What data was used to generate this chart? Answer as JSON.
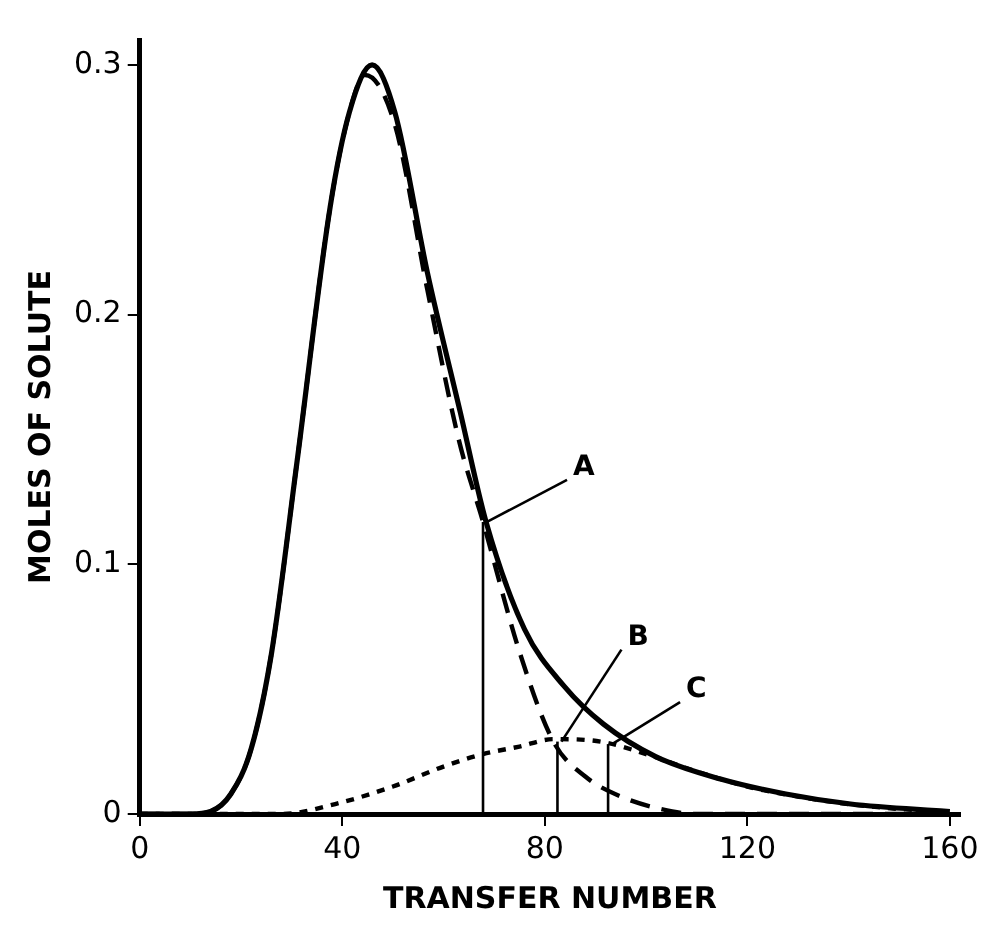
{
  "chart_data": {
    "type": "line",
    "xlabel": "TRANSFER NUMBER",
    "ylabel": "MOLES OF SOLUTE",
    "xlim": [
      0,
      162
    ],
    "ylim": [
      0,
      0.31
    ],
    "xticks": [
      0,
      40,
      80,
      120,
      160
    ],
    "yticks": [
      0,
      0.1,
      0.2,
      0.3
    ],
    "grid": false,
    "legend": false,
    "series": [
      {
        "color": "#000000",
        "line_style": "solid",
        "x": [
          0,
          10,
          14,
          18,
          22,
          26,
          31,
          37.6,
          41.4,
          45.9,
          50.4,
          56.8,
          63.3,
          68.4,
          76,
          83.9,
          91.6,
          101.9,
          114.7,
          127.6,
          140.4,
          160
        ],
        "values": [
          0,
          0,
          0.001,
          0.008,
          0.026,
          0.064,
          0.14,
          0.243,
          0.281,
          0.3,
          0.281,
          0.217,
          0.161,
          0.117,
          0.074,
          0.051,
          0.036,
          0.023,
          0.014,
          0.008,
          0.004,
          0.001
        ]
      },
      {
        "color": "#000000",
        "line_style": "dashed",
        "x": [
          0,
          10,
          14,
          18,
          22,
          26,
          31,
          37.6,
          41.4,
          44.5,
          50.4,
          56.8,
          63,
          67.8,
          75,
          81.7,
          88,
          95,
          103,
          110,
          160
        ],
        "values": [
          0,
          0,
          0.001,
          0.008,
          0.026,
          0.064,
          0.14,
          0.243,
          0.281,
          0.296,
          0.276,
          0.21,
          0.15,
          0.117,
          0.065,
          0.029,
          0.015,
          0.007,
          0.002,
          0,
          0
        ]
      },
      {
        "color": "#000000",
        "line_style": "dotted",
        "x": [
          0,
          28,
          38.6,
          50,
          60,
          67.8,
          75,
          81.7,
          91,
          100,
          110,
          120,
          130,
          140,
          150,
          160
        ],
        "values": [
          0,
          0,
          0.004,
          0.011,
          0.019,
          0.024,
          0.027,
          0.03,
          0.029,
          0.024,
          0.017,
          0.011,
          0.007,
          0.004,
          0.002,
          0.001
        ]
      },
      {
        "color": "#000000",
        "line_style": "solid",
        "x": [
          67.8,
          67.8
        ],
        "values": [
          0,
          0.117
        ]
      },
      {
        "color": "#000000",
        "line_style": "solid",
        "x": [
          82.5,
          82.5
        ],
        "values": [
          0,
          0.029
        ]
      },
      {
        "color": "#000000",
        "line_style": "solid",
        "x": [
          92.5,
          92.5
        ],
        "values": [
          0,
          0.028
        ]
      }
    ],
    "annotations": [
      {
        "text": "A",
        "x": 67.8,
        "y": 0.117
      },
      {
        "text": "B",
        "x": 82.5,
        "y": 0.029
      },
      {
        "text": "C",
        "x": 92.5,
        "y": 0.028
      }
    ]
  }
}
